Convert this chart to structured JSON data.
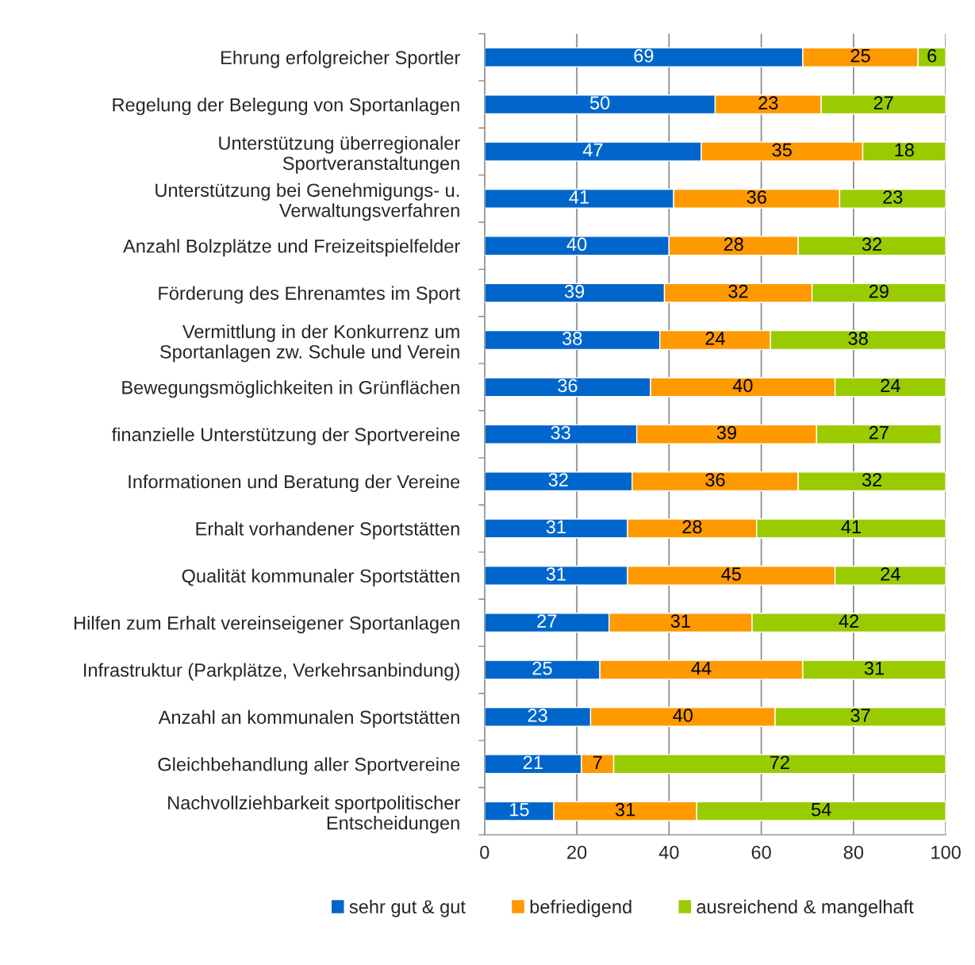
{
  "chart_data": {
    "type": "bar",
    "orientation": "horizontal",
    "stacked": true,
    "data_labels": true,
    "categories": [
      "Ehrung erfolgreicher Sportler",
      "Regelung der Belegung von Sportanlagen",
      "Unterstützung überregionaler\nSportveranstaltungen",
      "Unterstützung bei Genehmigungs- u.\nVerwaltungsverfahren",
      "Anzahl Bolzplätze und Freizeitspielfelder",
      "Förderung des Ehrenamtes im Sport",
      "Vermittlung in der Konkurrenz um\nSportanlagen zw. Schule und Verein",
      "Bewegungsmöglichkeiten in Grünflächen",
      "finanzielle Unterstützung der Sportvereine",
      "Informationen und Beratung der Vereine",
      "Erhalt vorhandener Sportstätten",
      "Qualität kommunaler Sportstätten",
      "Hilfen zum Erhalt vereinseigener Sportanlagen",
      "Infrastruktur (Parkplätze, Verkehrsanbindung)",
      "Anzahl an kommunalen Sportstätten",
      "Gleichbehandlung aller Sportvereine",
      "Nachvollziehbarkeit sportpolitischer\nEntscheidungen"
    ],
    "series": [
      {
        "name": "sehr gut & gut",
        "color": "#0066cc",
        "values": [
          69,
          50,
          47,
          41,
          40,
          39,
          38,
          36,
          33,
          32,
          31,
          31,
          27,
          25,
          23,
          21,
          15
        ]
      },
      {
        "name": "befriedigend",
        "color": "#ff9900",
        "values": [
          25,
          23,
          35,
          36,
          28,
          32,
          24,
          40,
          39,
          36,
          28,
          45,
          31,
          44,
          40,
          7,
          31
        ]
      },
      {
        "name": "ausreichend & mangelhaft",
        "color": "#99cc00",
        "values": [
          6,
          27,
          18,
          23,
          32,
          29,
          38,
          24,
          27,
          32,
          41,
          24,
          42,
          31,
          37,
          72,
          54
        ]
      }
    ],
    "xlim": [
      0,
      100
    ],
    "xticks": [
      0,
      20,
      40,
      60,
      80,
      100
    ],
    "grid": "x",
    "legend": "bottom"
  }
}
